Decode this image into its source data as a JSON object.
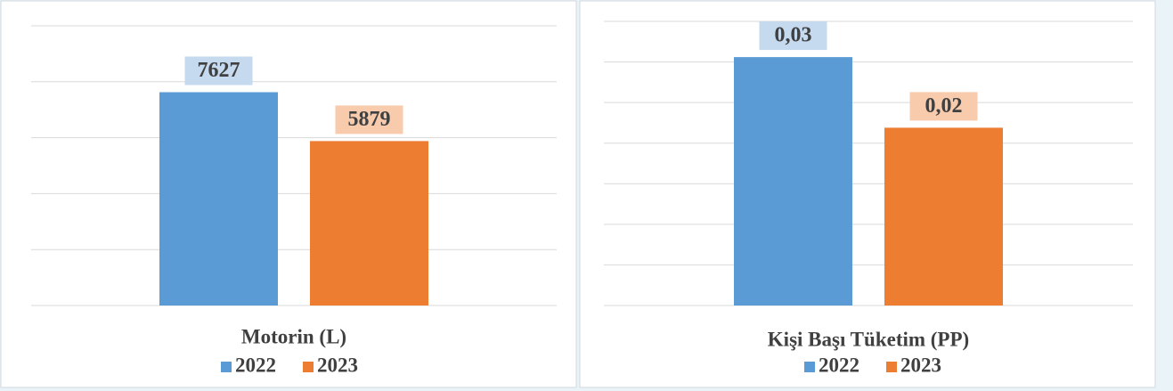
{
  "chart_data": [
    {
      "type": "bar",
      "categories": [
        "Motorin (L)"
      ],
      "series": [
        {
          "name": "2022",
          "color": "#5b9bd5",
          "label_color": "#c5d9ef",
          "values": [
            7627
          ]
        },
        {
          "name": "2023",
          "color": "#ed7d31",
          "label_color": "#f9cbad",
          "values": [
            5879
          ]
        }
      ],
      "ylim": [
        0,
        10000
      ],
      "yticks": [
        0,
        2000,
        4000,
        6000,
        8000,
        10000
      ],
      "grid": true,
      "legend": "bottom"
    },
    {
      "type": "bar",
      "categories": [
        "Kişi Başı Tüketim (PP)"
      ],
      "series": [
        {
          "name": "2022",
          "color": "#5b9bd5",
          "label_color": "#c5d9ef",
          "values": [
            0.0306
          ],
          "value_labels": [
            "0,03"
          ]
        },
        {
          "name": "2023",
          "color": "#ed7d31",
          "label_color": "#f9cbad",
          "values": [
            0.0219
          ],
          "value_labels": [
            "0,02"
          ]
        }
      ],
      "ylim": [
        0,
        0.035
      ],
      "yticks": [
        0,
        0.005,
        0.01,
        0.015,
        0.02,
        0.025,
        0.03,
        0.035
      ],
      "grid": true,
      "legend": "bottom"
    }
  ]
}
